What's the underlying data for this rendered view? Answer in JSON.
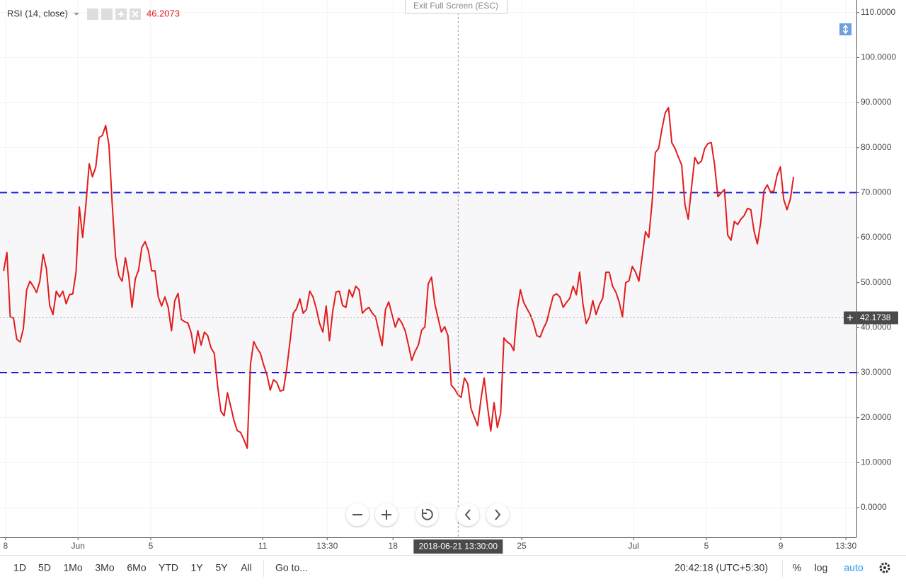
{
  "chart_data": {
    "type": "line",
    "series": [
      {
        "name": "RSI (14, close)",
        "color": "#e31c1c",
        "values": [
          52.6,
          56.7,
          42.4,
          42.1,
          37.4,
          36.8,
          39.8,
          48.4,
          50.3,
          49.2,
          47.8,
          50.3,
          56.3,
          53.1,
          44.9,
          42.9,
          48.1,
          46.8,
          48.1,
          45.3,
          47.3,
          47.5,
          52.3,
          66.8,
          60.0,
          67.3,
          76.4,
          73.5,
          75.7,
          82.2,
          82.7,
          84.9,
          80.6,
          67.3,
          55.8,
          51.5,
          50.3,
          55.5,
          51.5,
          44.5,
          50.8,
          52.8,
          57.8,
          59.1,
          57.0,
          52.6,
          52.6,
          46.8,
          44.8,
          46.8,
          44.5,
          39.3,
          46.0,
          47.6,
          41.8,
          41.3,
          41.0,
          38.8,
          34.3,
          39.3,
          36.1,
          39.0,
          38.2,
          35.5,
          34.3,
          27.2,
          21.4,
          20.4,
          25.5,
          22.5,
          19.3,
          17.1,
          16.7,
          15.1,
          13.2,
          31.9,
          36.9,
          35.4,
          34.3,
          31.7,
          29.5,
          26.1,
          28.4,
          27.8,
          25.9,
          26.1,
          30.8,
          36.9,
          43.2,
          44.2,
          46.4,
          43.2,
          44.0,
          48.1,
          46.8,
          44.2,
          40.9,
          39.0,
          44.8,
          37.1,
          43.7,
          47.9,
          48.1,
          44.9,
          44.5,
          48.4,
          46.8,
          49.2,
          48.4,
          43.2,
          44.0,
          44.5,
          43.2,
          42.4,
          39.1,
          36.0,
          44.0,
          45.7,
          42.9,
          40.1,
          42.1,
          41.0,
          39.3,
          36.1,
          32.7,
          34.7,
          36.1,
          39.4,
          40.2,
          49.7,
          51.2,
          45.3,
          42.1,
          39.0,
          40.2,
          38.2,
          27.2,
          26.4,
          25.1,
          24.5,
          28.8,
          27.5,
          22.0,
          20.1,
          18.2,
          24.0,
          28.8,
          22.5,
          17.0,
          23.3,
          17.8,
          20.9,
          37.7,
          36.8,
          36.3,
          34.9,
          43.7,
          48.4,
          45.6,
          44.2,
          42.9,
          40.9,
          38.2,
          37.9,
          39.8,
          41.3,
          44.3,
          47.1,
          47.5,
          46.8,
          44.5,
          45.6,
          46.5,
          49.2,
          47.3,
          52.3,
          45.3,
          40.9,
          42.4,
          46.0,
          42.9,
          45.1,
          46.5,
          52.3,
          52.3,
          49.2,
          47.9,
          45.7,
          42.4,
          50.0,
          50.4,
          53.6,
          52.3,
          50.3,
          55.8,
          61.3,
          60.0,
          67.7,
          78.9,
          79.8,
          84.1,
          87.7,
          88.9,
          81.1,
          79.8,
          77.9,
          76.1,
          67.3,
          64.1,
          71.2,
          77.8,
          76.4,
          77.0,
          79.8,
          80.9,
          81.1,
          76.2,
          69.1,
          69.9,
          70.7,
          60.5,
          59.4,
          63.6,
          62.9,
          64.1,
          64.9,
          66.5,
          66.2,
          61.4,
          58.6,
          63.3,
          70.4,
          71.7,
          70.1,
          70.4,
          73.9,
          75.7,
          68.5,
          66.2,
          68.5,
          73.5
        ]
      }
    ],
    "legend_value": 46.2073,
    "ylim": [
      -6.6,
      112
    ],
    "yticks": [
      {
        "value": 0,
        "label": "0.0000"
      },
      {
        "value": 10,
        "label": "10.0000"
      },
      {
        "value": 20,
        "label": "20.0000"
      },
      {
        "value": 30,
        "label": "30.0000"
      },
      {
        "value": 40,
        "label": "40.0000"
      },
      {
        "value": 50,
        "label": "50.0000"
      },
      {
        "value": 60,
        "label": "60.0000"
      },
      {
        "value": 70,
        "label": "70.0000"
      },
      {
        "value": 80,
        "label": "80.0000"
      },
      {
        "value": 90,
        "label": "90.0000"
      },
      {
        "value": 100,
        "label": "100.0000"
      },
      {
        "value": 110,
        "label": "110.0000"
      }
    ],
    "xlim": [
      -1.1,
      259.1
    ],
    "xticks": [
      {
        "value": 0.6,
        "label": "8"
      },
      {
        "value": 22.6,
        "label": "Jun"
      },
      {
        "value": 44.7,
        "label": "5"
      },
      {
        "value": 78.7,
        "label": "11"
      },
      {
        "value": 98.3,
        "label": "13:30"
      },
      {
        "value": 118.3,
        "label": "18"
      },
      {
        "value": 157.4,
        "label": "25"
      },
      {
        "value": 191.4,
        "label": "Jul"
      },
      {
        "value": 213.5,
        "label": "5"
      },
      {
        "value": 236.1,
        "label": "9"
      },
      {
        "value": 255.9,
        "label": "13:30"
      }
    ],
    "hlines": [
      {
        "value": 70,
        "color": "#1c1cd8"
      },
      {
        "value": 30,
        "color": "#1c1cd8"
      }
    ],
    "grid": true,
    "crosshair": {
      "x": {
        "value": 138.1,
        "label": "2018-06-21 13:30:00"
      },
      "y": 42.1738
    }
  },
  "exit_fullscreen": "Exit Full Screen (ESC)",
  "toolbar": {
    "ranges": [
      "1D",
      "5D",
      "1Mo",
      "3Mo",
      "6Mo",
      "YTD",
      "1Y",
      "5Y",
      "All"
    ],
    "goto": "Go to...",
    "clock": "20:42:18 (UTC+5:30)",
    "options": [
      "%",
      "log",
      "auto"
    ]
  }
}
